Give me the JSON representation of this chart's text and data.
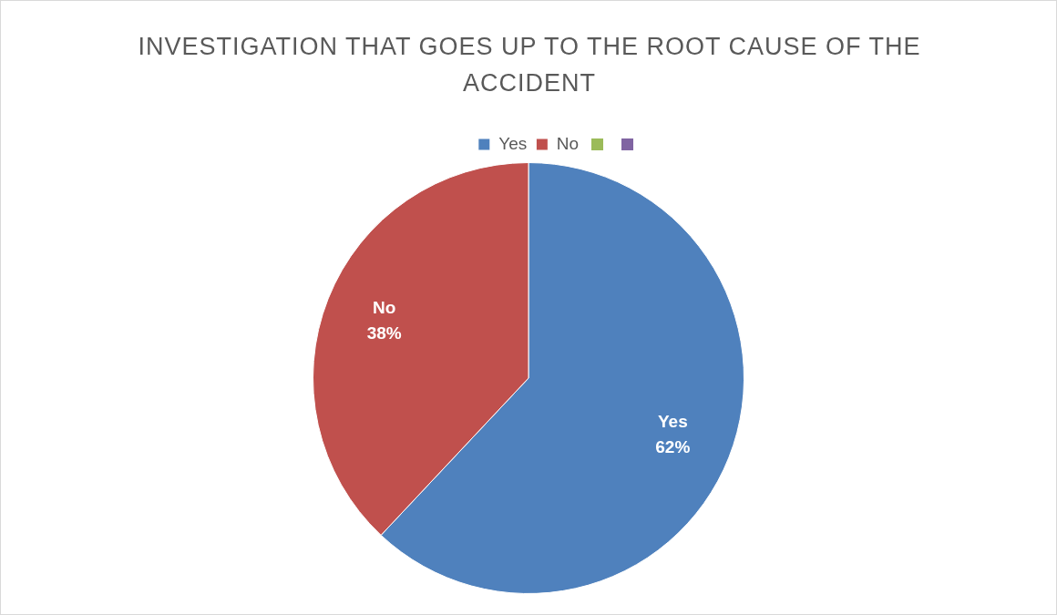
{
  "chart_data": {
    "type": "pie",
    "title": "INVESTIGATION THAT GOES UP TO THE ROOT CAUSE OF THE ACCIDENT",
    "categories": [
      "Yes",
      "No",
      null,
      null
    ],
    "values": [
      62,
      38,
      0,
      0
    ],
    "colors": [
      "#4f81bd",
      "#c0504d",
      "#9bbb59",
      "#8064a2"
    ],
    "value_labels": [
      "62%",
      "38%",
      null,
      null
    ],
    "legend": "top"
  }
}
